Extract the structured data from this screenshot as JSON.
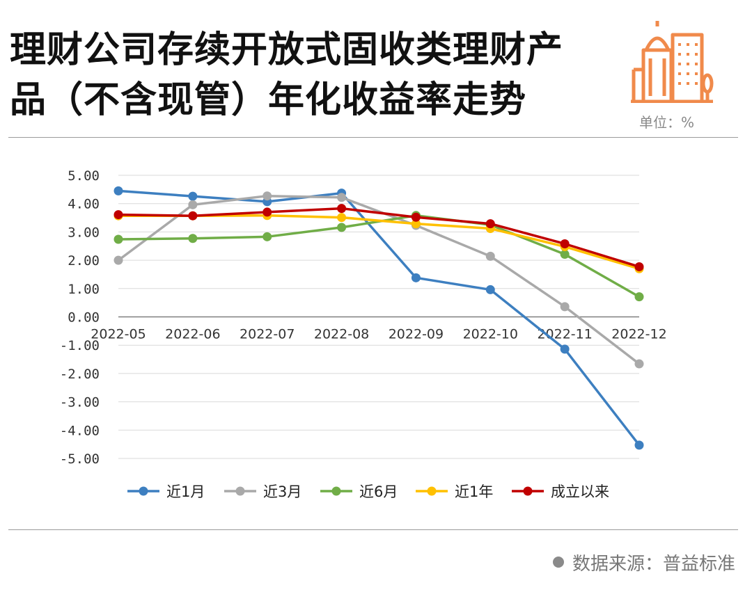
{
  "header": {
    "title_line1": "理财公司存续开放式固收类理财产",
    "title_line2": "品（不含现管）年化收益率走势",
    "unit": "单位：%"
  },
  "footer": {
    "source": "数据来源：普益标准"
  },
  "chart_data": {
    "type": "line",
    "title": "理财公司存续开放式固收类理财产品（不含现管）年化收益率走势",
    "xlabel": "",
    "ylabel": "",
    "ylim": [
      -5,
      5
    ],
    "yticks": [
      "5.00",
      "4.00",
      "3.00",
      "2.00",
      "1.00",
      "0.00",
      "-1.00",
      "-2.00",
      "-3.00",
      "-4.00",
      "-5.00"
    ],
    "categories": [
      "2022-05",
      "2022-06",
      "2022-07",
      "2022-08",
      "2022-09",
      "2022-10",
      "2022-11",
      "2022-12"
    ],
    "grid": true,
    "legend_position": "bottom",
    "series": [
      {
        "name": "近1月",
        "color": "#3d7fc0",
        "values": [
          4.45,
          4.26,
          4.07,
          4.37,
          1.38,
          0.96,
          -1.14,
          -4.53
        ]
      },
      {
        "name": "近3月",
        "color": "#a9a9a9",
        "values": [
          2.0,
          3.96,
          4.27,
          4.22,
          3.23,
          2.14,
          0.36,
          -1.66
        ]
      },
      {
        "name": "近6月",
        "color": "#70ad47",
        "values": [
          2.74,
          2.77,
          2.83,
          3.16,
          3.58,
          3.25,
          2.21,
          0.71
        ]
      },
      {
        "name": "近1年",
        "color": "#ffc000",
        "values": [
          3.57,
          3.57,
          3.58,
          3.51,
          3.29,
          3.12,
          2.48,
          1.7
        ]
      },
      {
        "name": "成立以来",
        "color": "#c00000",
        "values": [
          3.61,
          3.57,
          3.7,
          3.83,
          3.52,
          3.29,
          2.58,
          1.77
        ]
      }
    ]
  }
}
